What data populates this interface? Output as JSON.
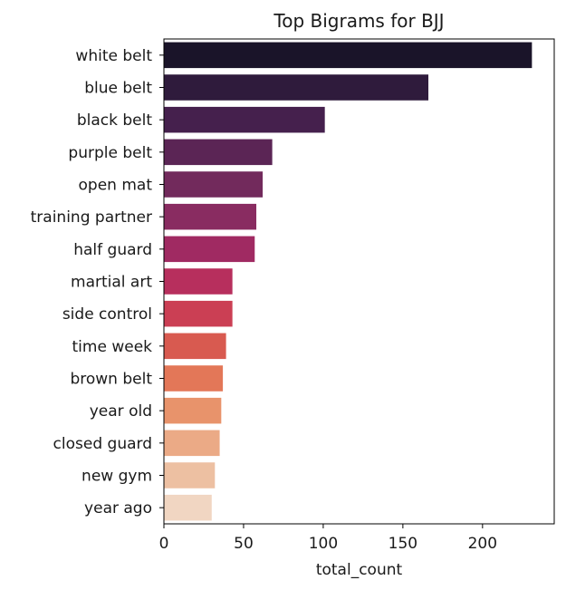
{
  "chart_data": {
    "type": "bar",
    "orientation": "horizontal",
    "title": "Top Bigrams for BJJ",
    "xlabel": "total_count",
    "ylabel": "",
    "categories": [
      "white belt",
      "blue belt",
      "black belt",
      "purple belt",
      "open mat",
      "training partner",
      "half guard",
      "martial art",
      "side control",
      "time week",
      "brown belt",
      "year old",
      "closed guard",
      "new gym",
      "year ago"
    ],
    "values": [
      231,
      166,
      101,
      68,
      62,
      58,
      57,
      43,
      43,
      39,
      37,
      36,
      35,
      32,
      30
    ],
    "colors": [
      "#1a1429",
      "#2f1b3c",
      "#45204d",
      "#5b2555",
      "#722a5c",
      "#892c61",
      "#a02a62",
      "#b72f5d",
      "#cb3f54",
      "#d85a50",
      "#e37758",
      "#e8936b",
      "#ebaa86",
      "#edc0a2",
      "#f1d6c2"
    ],
    "xlim": [
      0,
      245
    ],
    "xticks": [
      0,
      50,
      100,
      150,
      200
    ],
    "grid": false,
    "legend": "none"
  }
}
